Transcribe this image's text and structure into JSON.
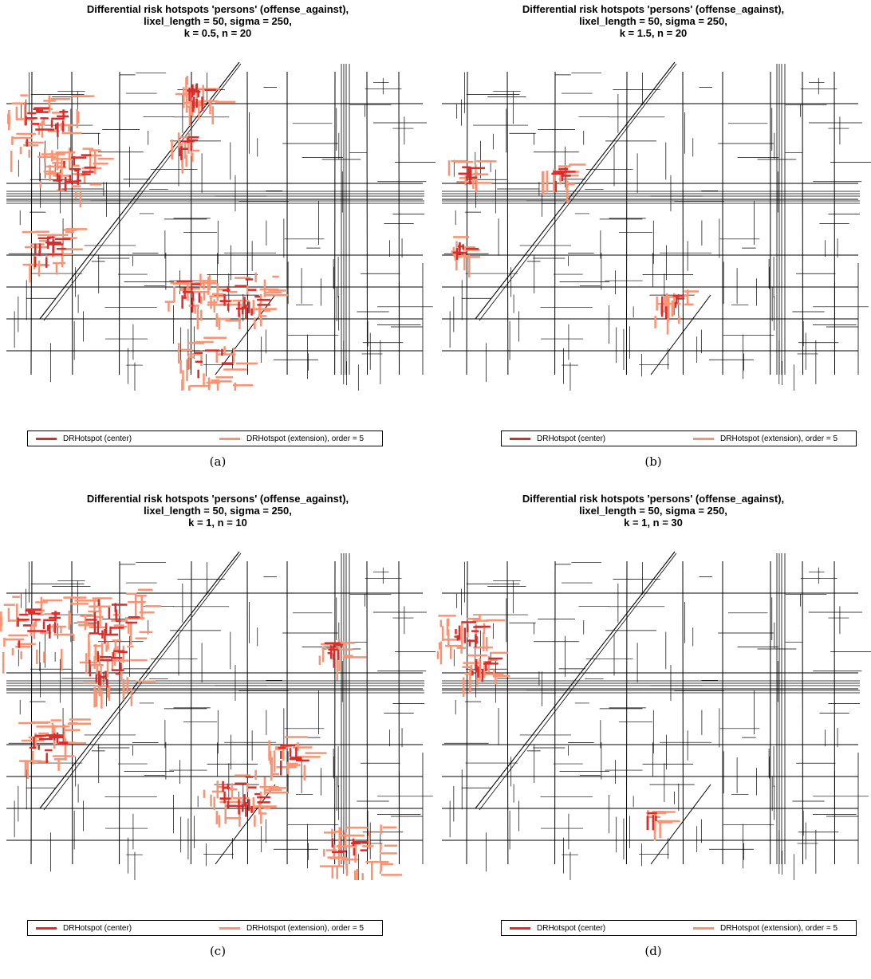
{
  "colors": {
    "center": "#dd2a2a",
    "extension": "#fc9272",
    "roads": "#000000"
  },
  "legend": {
    "center_label": "DRHotspot (center)",
    "extension_label": "DRHotspot (extension), order = 5"
  },
  "panels": [
    {
      "caption": "(a)",
      "title": {
        "line1": "Differential risk hotspots 'persons' (offense_against),",
        "line2": "lixel_length = 50, sigma = 250,",
        "line3": "k = 0.5, n = 20"
      }
    },
    {
      "caption": "(b)",
      "title": {
        "line1": "Differential risk hotspots 'persons' (offense_against),",
        "line2": "lixel_length = 50, sigma = 250,",
        "line3": "k = 1.5, n = 20"
      }
    },
    {
      "caption": "(c)",
      "title": {
        "line1": "Differential risk hotspots 'persons' (offense_against),",
        "line2": "lixel_length = 50, sigma = 250,",
        "line3": "k = 1, n = 10"
      }
    },
    {
      "caption": "(d)",
      "title": {
        "line1": "Differential risk hotspots 'persons' (offense_against),",
        "line2": "lixel_length = 50, sigma = 250,",
        "line3": "k = 1, n = 30"
      }
    }
  ]
}
